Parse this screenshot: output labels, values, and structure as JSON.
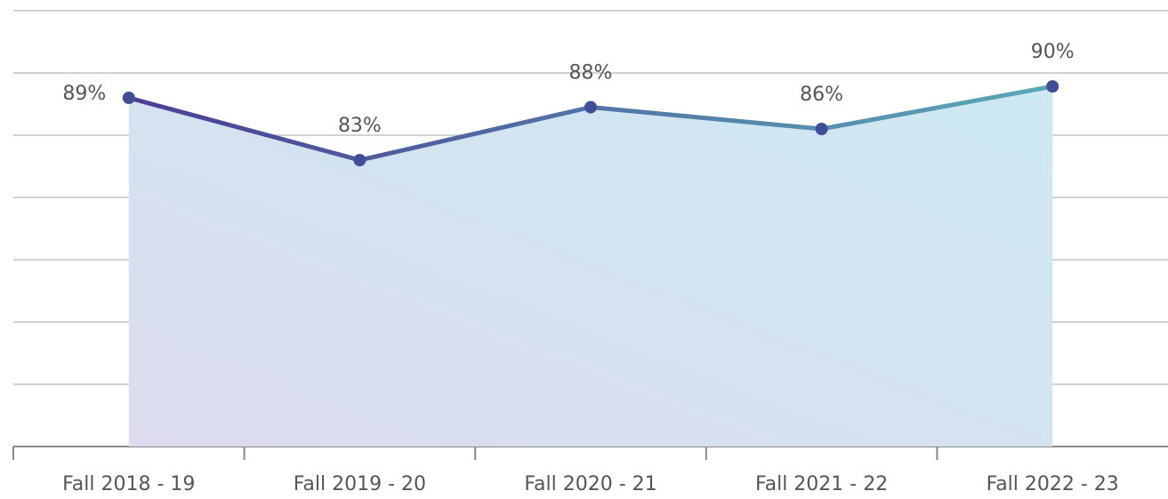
{
  "chart_data": {
    "type": "line",
    "categories": [
      "Fall 2018 - 19",
      "Fall 2019 - 20",
      "Fall 2020 - 21",
      "Fall 2021 - 22",
      "Fall 2022 - 23"
    ],
    "series": [
      {
        "color": "#3f4e96",
        "values": [
          88.6,
          82.6,
          87.7,
          85.6,
          89.7
        ],
        "value_labels": [
          "89%",
          "83%",
          "88%",
          "86%",
          "90%"
        ]
      }
    ],
    "ylim": [
      55,
      97
    ],
    "yticks": [
      55,
      61,
      67,
      73,
      79,
      85,
      91,
      97
    ],
    "grid": true
  }
}
